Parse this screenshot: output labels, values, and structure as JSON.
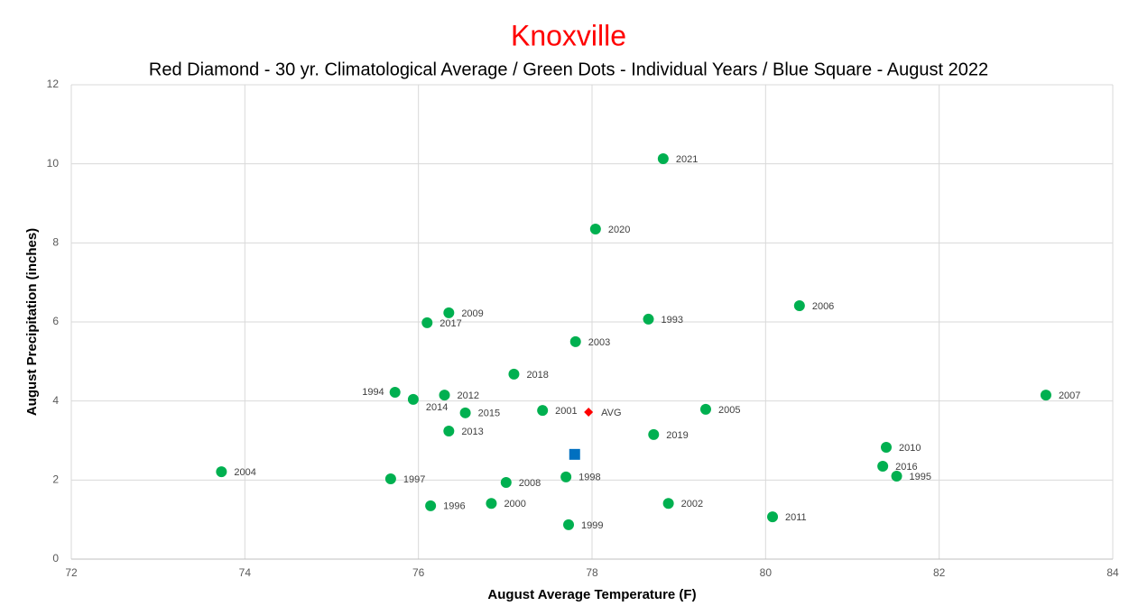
{
  "chart_data": {
    "type": "scatter",
    "title": "Knoxville",
    "subtitle": "Red Diamond - 30 yr. Climatological Average / Green Dots - Individual Years / Blue Square - August 2022",
    "xlabel": "August Average Temperature (F)",
    "ylabel": "August Precipitation (inches)",
    "xlim": [
      72,
      84
    ],
    "xticks": [
      72,
      74,
      76,
      78,
      80,
      82,
      84
    ],
    "ylim": [
      0,
      12
    ],
    "yticks": [
      0,
      2,
      4,
      6,
      8,
      10,
      12
    ],
    "grid": true,
    "series": [
      {
        "color": "#00b050",
        "marker": "circle",
        "labels": [
          "2021",
          "2020",
          "2006",
          "2009",
          "2017",
          "1993",
          "2003",
          "2018",
          "1994",
          "2014",
          "2012",
          "2015",
          "2001",
          "2005",
          "2007",
          "2013",
          "2019",
          "2010",
          "2016",
          "1995",
          "2004",
          "1997",
          "2008",
          "1998",
          "2000",
          "2002",
          "1996",
          "2011",
          "1999"
        ],
        "x": [
          78.82,
          78.04,
          80.39,
          76.35,
          76.1,
          78.65,
          77.81,
          77.1,
          75.73,
          75.94,
          76.3,
          76.54,
          77.43,
          79.31,
          83.23,
          76.35,
          78.71,
          81.39,
          81.35,
          81.51,
          73.73,
          75.68,
          77.01,
          77.7,
          76.84,
          78.88,
          76.14,
          80.08,
          77.73
        ],
        "values": [
          10.13,
          8.35,
          6.41,
          6.23,
          5.98,
          6.07,
          5.5,
          4.68,
          4.22,
          4.04,
          4.15,
          3.7,
          3.76,
          3.79,
          4.15,
          3.24,
          3.15,
          2.83,
          2.35,
          2.1,
          2.21,
          2.03,
          1.94,
          2.08,
          1.41,
          1.41,
          1.35,
          1.07,
          0.87
        ]
      },
      {
        "color": "#ff0000",
        "marker": "diamond",
        "labels": [
          "AVG"
        ],
        "x": [
          77.96
        ],
        "values": [
          3.72
        ]
      },
      {
        "color": "#0070c0",
        "marker": "square",
        "x": [
          77.8
        ],
        "values": [
          2.65
        ]
      }
    ]
  }
}
